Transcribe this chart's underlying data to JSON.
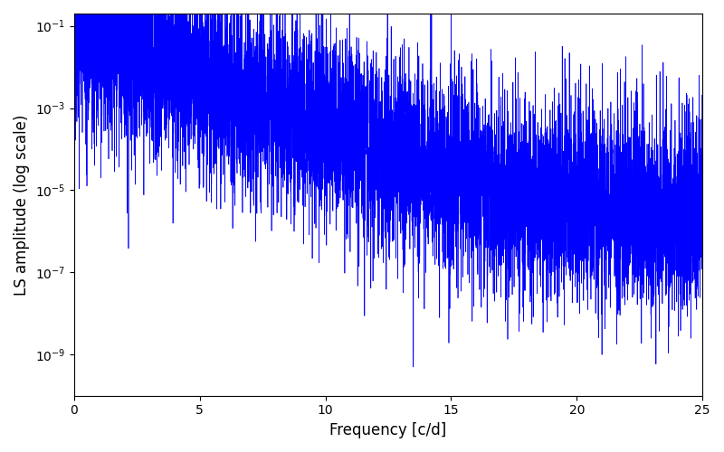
{
  "xlabel": "Frequency [c/d]",
  "ylabel": "LS amplitude (log scale)",
  "xlim": [
    0,
    25
  ],
  "ylim": [
    1e-10,
    0.2
  ],
  "line_color": "#0000ff",
  "line_width": 0.5,
  "background_color": "#ffffff",
  "freq_max": 25.0,
  "n_points": 8000,
  "seed": 7777,
  "xlabel_fontsize": 12,
  "ylabel_fontsize": 12,
  "tick_labelsize": 10,
  "yticks": [
    1e-09,
    1e-07,
    1e-05,
    0.001,
    0.1
  ]
}
